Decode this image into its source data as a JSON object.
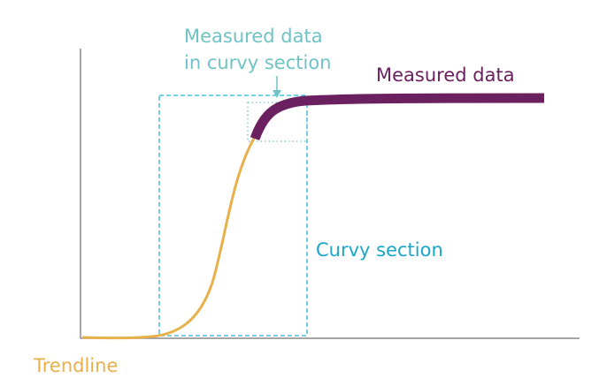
{
  "labels": {
    "inset_line1": "Measured data",
    "inset_line2": "in curvy section",
    "measured": "Measured data",
    "curvy": "Curvy section",
    "trendline": "Trendline"
  }
}
